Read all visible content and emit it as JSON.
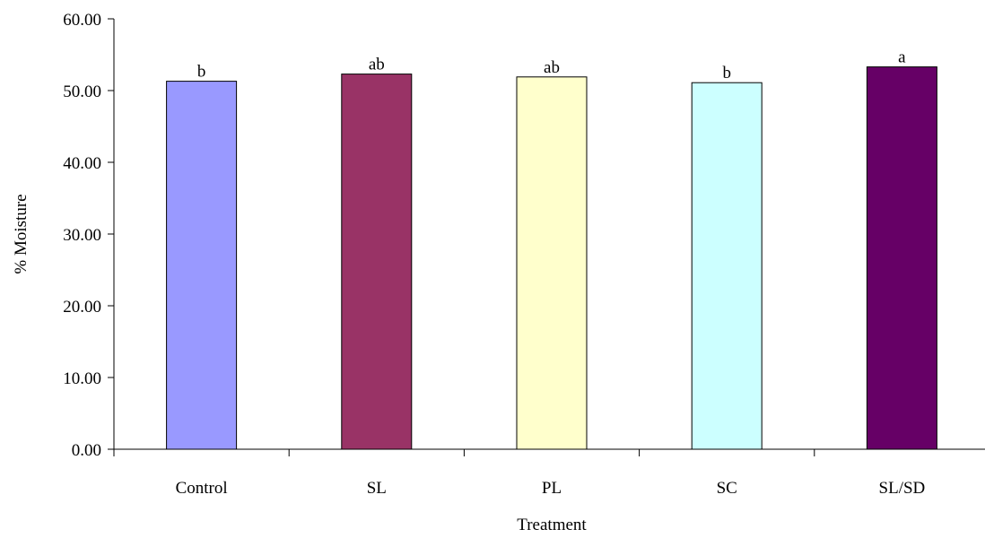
{
  "chart_data": {
    "type": "bar",
    "title": "",
    "xlabel": "Treatment",
    "ylabel": "% Moisture",
    "categories": [
      "Control",
      "SL",
      "PL",
      "SC",
      "SL/SD"
    ],
    "values": [
      51.3,
      52.3,
      51.9,
      51.1,
      53.3
    ],
    "data_labels": [
      "b",
      "ab",
      "ab",
      "b",
      "a"
    ],
    "bar_colors": [
      "#9999FF",
      "#993366",
      "#FFFFCC",
      "#CCFFFF",
      "#660066"
    ],
    "ylim": [
      0,
      60
    ],
    "yticks": [
      0,
      10,
      20,
      30,
      40,
      50,
      60
    ],
    "ytick_labels": [
      "0.00",
      "10.00",
      "20.00",
      "30.00",
      "40.00",
      "50.00",
      "60.00"
    ],
    "grid": false,
    "legend": "none"
  }
}
